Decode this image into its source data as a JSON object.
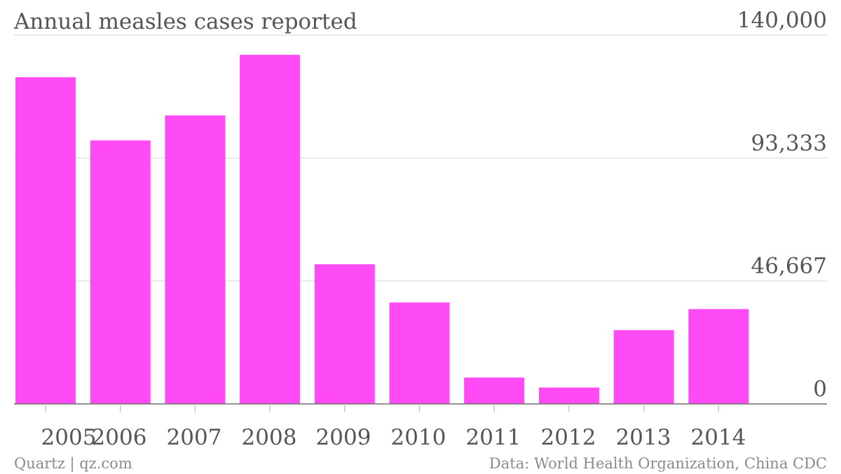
{
  "chart_data": {
    "type": "bar",
    "title": "Annual measles cases reported",
    "xlabel": "",
    "ylabel": "",
    "categories": [
      "2005",
      "2006",
      "2007",
      "2008",
      "2009",
      "2010",
      "2011",
      "2012",
      "2013",
      "2014"
    ],
    "values": [
      124000,
      100000,
      109500,
      132500,
      53000,
      38500,
      10000,
      6200,
      28000,
      36000
    ],
    "ylim": [
      0,
      140000
    ],
    "yticks": [
      0,
      46667,
      93333,
      140000
    ],
    "ytick_labels": [
      "0",
      "46,667",
      "93,333",
      "140,000"
    ],
    "grid": true,
    "bar_color": "#ff4bf5",
    "y_axis_position": "right"
  },
  "footer": {
    "credit": "Quartz | qz.com",
    "source": "Data: World Health Organization, China CDC"
  }
}
